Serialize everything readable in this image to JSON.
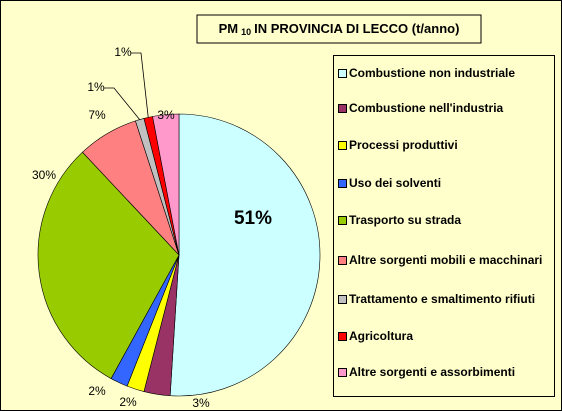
{
  "chart_data": {
    "type": "pie",
    "title": [
      "PM",
      "10",
      "IN PROVINCIA DI LECCO (t/anno)"
    ],
    "series": [
      {
        "name": "Combustione non industriale",
        "color": "#ccffff",
        "values": [
          51
        ],
        "value_labels": [
          "51%"
        ]
      },
      {
        "name": "Combustione nell'industria",
        "color": "#993366",
        "values": [
          3
        ],
        "value_labels": [
          "3%"
        ]
      },
      {
        "name": "Processi produttivi",
        "color": "#ffff00",
        "values": [
          2
        ],
        "value_labels": [
          "2%"
        ]
      },
      {
        "name": "Uso dei solventi",
        "color": "#3366ff",
        "values": [
          2
        ],
        "value_labels": [
          "2%"
        ]
      },
      {
        "name": "Trasporto su strada",
        "color": "#99cc00",
        "values": [
          30
        ],
        "value_labels": [
          "30%"
        ]
      },
      {
        "name": "Altre sorgenti mobili e macchinari",
        "color": "#ff8080",
        "values": [
          7
        ],
        "value_labels": [
          "7%"
        ]
      },
      {
        "name": "Trattamento e smaltimento rifiuti",
        "color": "#c0c0c0",
        "values": [
          1
        ],
        "value_labels": [
          "1%"
        ]
      },
      {
        "name": "Agricoltura",
        "color": "#ff0000",
        "values": [
          1
        ],
        "value_labels": [
          "1%"
        ]
      },
      {
        "name": "Altre sorgenti e assorbimenti",
        "color": "#ff99cc",
        "values": [
          3
        ],
        "value_labels": [
          "3%"
        ]
      }
    ]
  }
}
